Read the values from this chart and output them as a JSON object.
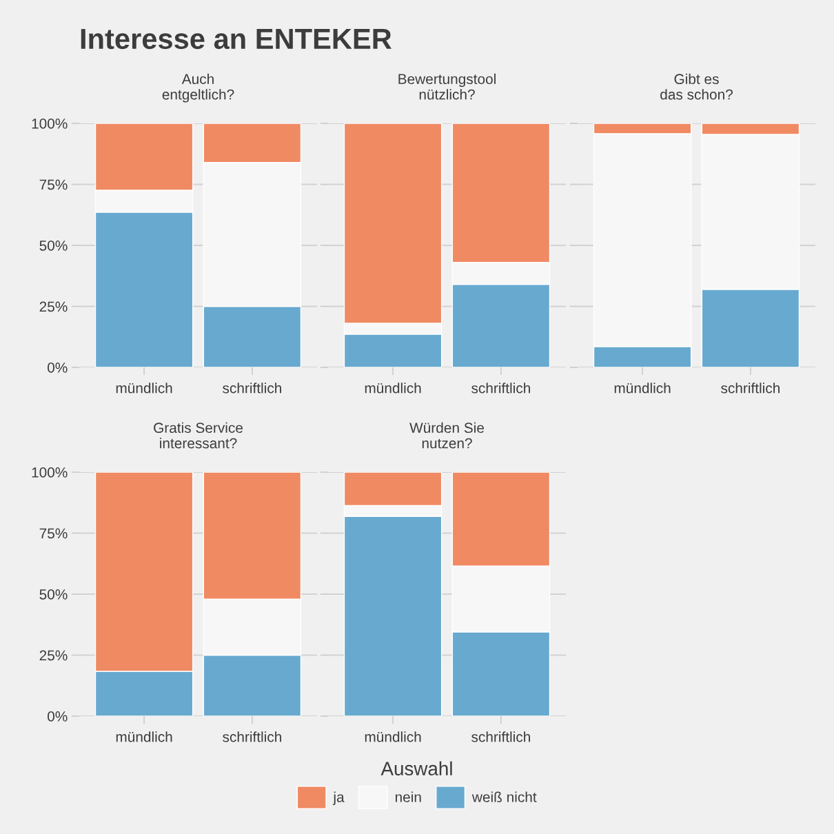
{
  "chart_data": [
    {
      "type": "bar",
      "title": "Interesse an ENTEKER",
      "subtitle": "Auch\nentgeltlich?",
      "categories": [
        "mündlich",
        "schriftlich"
      ],
      "stacked": true,
      "grid": "y",
      "ylim": [
        0,
        100
      ],
      "yticks": [
        {
          "value": 0,
          "label": "0%"
        },
        {
          "value": 25,
          "label": "25%"
        },
        {
          "value": 50,
          "label": "50%"
        },
        {
          "value": 75,
          "label": "75%"
        },
        {
          "value": 100,
          "label": "100%"
        }
      ],
      "series": [
        {
          "color": "#68a9cf",
          "values": [
            63.6,
            25
          ]
        },
        {
          "color": "#f7f7f7",
          "values": [
            9.0,
            59
          ]
        },
        {
          "color": "#f08a63",
          "values": [
            27.4,
            16
          ]
        }
      ]
    },
    {
      "type": "bar",
      "subtitle": "Bewertungstool\nnützlich?",
      "categories": [
        "mündlich",
        "schriftlich"
      ],
      "stacked": true,
      "grid": "y",
      "tick_labels": "x",
      "ylim": [
        0,
        100
      ],
      "yticks": [
        {
          "value": 0,
          "label": null
        },
        {
          "value": 25,
          "label": null
        },
        {
          "value": 50,
          "label": null
        },
        {
          "value": 75,
          "label": null
        },
        {
          "value": 100,
          "label": null
        }
      ],
      "series": [
        {
          "color": "#68a9cf",
          "values": [
            13.6,
            34
          ]
        },
        {
          "color": "#f7f7f7",
          "values": [
            4.5,
            9
          ]
        },
        {
          "color": "#f08a63",
          "values": [
            81.9,
            57
          ]
        }
      ]
    },
    {
      "type": "bar",
      "subtitle": "Gibt es\ndas schon?",
      "categories": [
        "mündlich",
        "schriftlich"
      ],
      "stacked": true,
      "grid": "y",
      "tick_labels": "x",
      "ylim": [
        0,
        100
      ],
      "yticks": [
        {
          "value": 0,
          "label": null
        },
        {
          "value": 25,
          "label": null
        },
        {
          "value": 50,
          "label": null
        },
        {
          "value": 75,
          "label": null
        },
        {
          "value": 100,
          "label": null
        }
      ],
      "series": [
        {
          "color": "#68a9cf",
          "values": [
            8.5,
            32
          ]
        },
        {
          "color": "#f7f7f7",
          "values": [
            87.3,
            63.5
          ]
        },
        {
          "color": "#f08a63",
          "values": [
            4.2,
            4.5
          ]
        }
      ]
    },
    {
      "type": "bar",
      "subtitle": "Gratis Service\ninteressant?",
      "categories": [
        "mündlich",
        "schriftlich"
      ],
      "stacked": true,
      "grid": "y",
      "ylim": [
        0,
        100
      ],
      "yticks": [
        {
          "value": 0,
          "label": "0%"
        },
        {
          "value": 25,
          "label": "25%"
        },
        {
          "value": 50,
          "label": "50%"
        },
        {
          "value": 75,
          "label": "75%"
        },
        {
          "value": 100,
          "label": "100%"
        }
      ],
      "series": [
        {
          "color": "#68a9cf",
          "values": [
            18.4,
            25
          ]
        },
        {
          "color": "#f7f7f7",
          "values": [
            0,
            23
          ]
        },
        {
          "color": "#f08a63",
          "values": [
            81.6,
            52
          ]
        }
      ]
    },
    {
      "type": "bar",
      "subtitle": "Würden Sie\nnutzen?",
      "categories": [
        "mündlich",
        "schriftlich"
      ],
      "stacked": true,
      "grid": "y",
      "tick_labels": "x",
      "legend": "bottom",
      "legend_title": "Auswahl",
      "ylim": [
        0,
        100
      ],
      "yticks": [
        {
          "value": 0,
          "label": null
        },
        {
          "value": 25,
          "label": null
        },
        {
          "value": 50,
          "label": null
        },
        {
          "value": 75,
          "label": null
        },
        {
          "value": 100,
          "label": null
        }
      ],
      "series": [
        {
          "name": "weiß nicht",
          "color": "#68a9cf",
          "values": [
            81.8,
            34.5
          ]
        },
        {
          "name": "nein",
          "color": "#f7f7f7",
          "values": [
            4.5,
            27
          ]
        },
        {
          "name": "ja",
          "color": "#f08a63",
          "values": [
            13.7,
            38.5
          ]
        }
      ]
    }
  ]
}
